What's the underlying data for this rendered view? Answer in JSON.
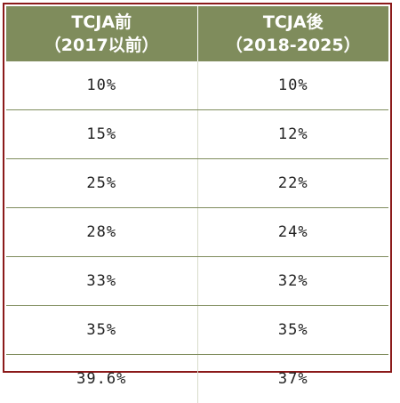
{
  "table": {
    "headers": [
      {
        "line1": "TCJA前",
        "line2": "（2017以前）"
      },
      {
        "line1": "TCJA後",
        "line2": "（2018-2025）"
      }
    ],
    "rows": [
      [
        "10%",
        "10%"
      ],
      [
        "15%",
        "12%"
      ],
      [
        "25%",
        "22%"
      ],
      [
        "28%",
        "24%"
      ],
      [
        "33%",
        "32%"
      ],
      [
        "35%",
        "35%"
      ],
      [
        "39.6%",
        "37%"
      ]
    ]
  },
  "colors": {
    "header_bg": "#7f8c5c",
    "header_text": "#ffffff",
    "frame_border": "#8b1a1a",
    "row_divider": "#7f8c5c"
  }
}
